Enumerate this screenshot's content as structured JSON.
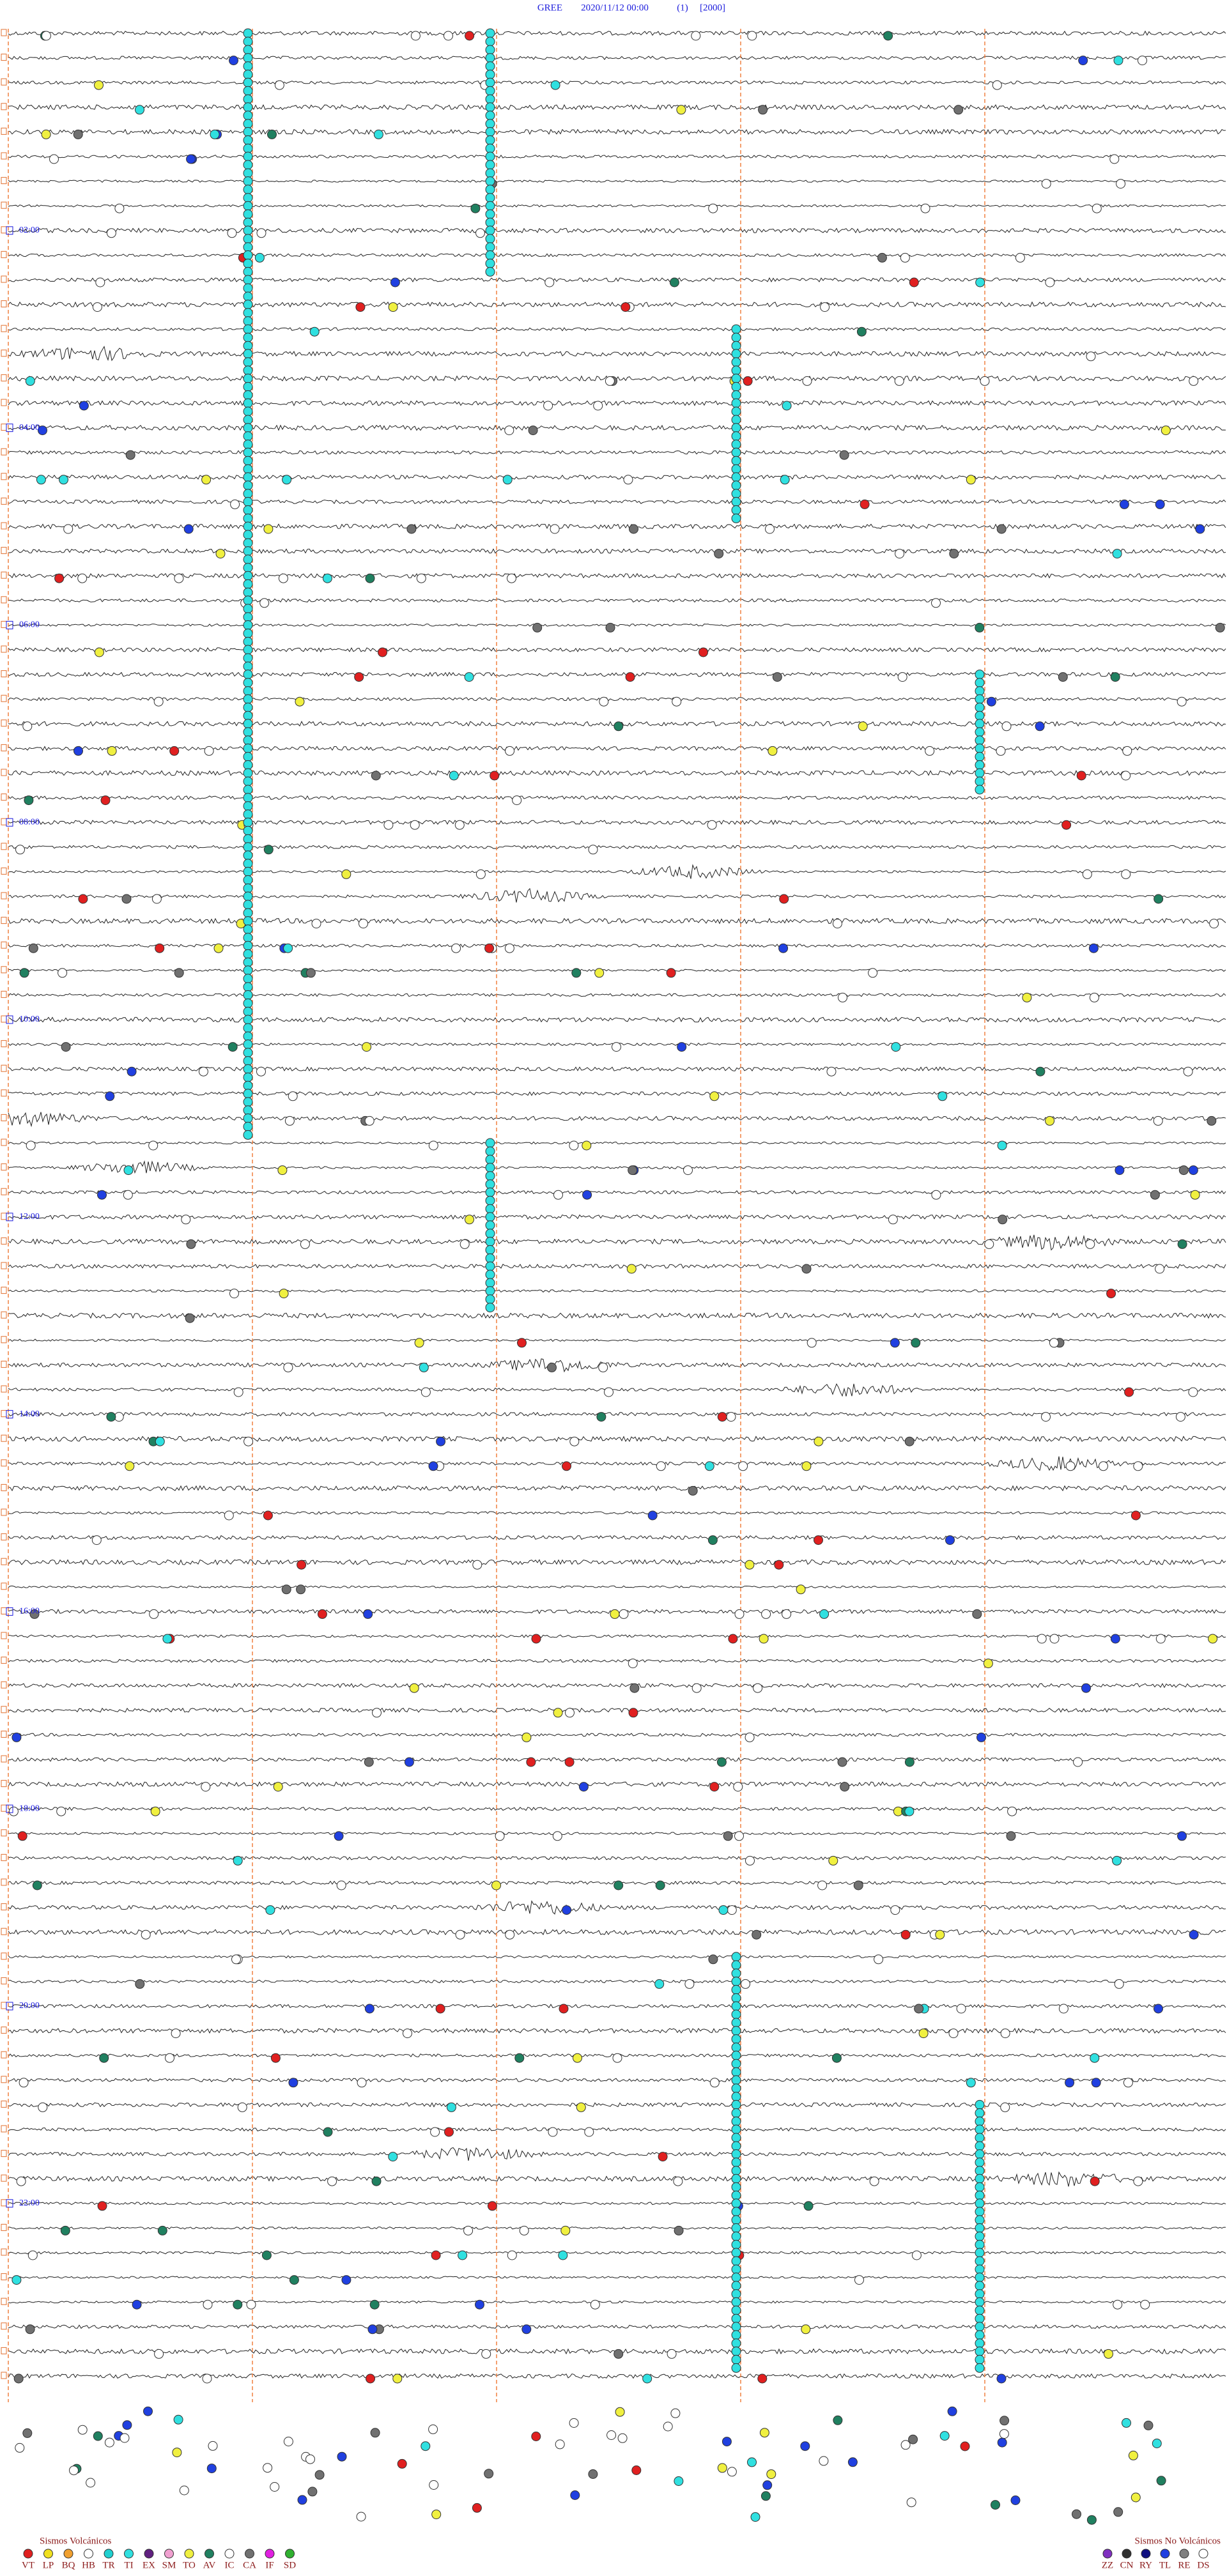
{
  "header": {
    "station": "GREE",
    "datetime": "2020/11/12 00:00",
    "channel": "(1)",
    "scale": "[2000]"
  },
  "hour_labels": [
    "02:00",
    "04:00",
    "06:00",
    "08:00",
    "10:00",
    "12:00",
    "14:00",
    "16:00",
    "18:00",
    "20:00",
    "22:00"
  ],
  "legend": {
    "volcanic": {
      "title": "Sismos Volcánicos",
      "codes": [
        "VT",
        "LP",
        "BQ",
        "HB",
        "TR",
        "TI",
        "EX",
        "SM",
        "TO",
        "AV",
        "IC",
        "CA",
        "IF",
        "SD"
      ],
      "colors": [
        "#e02020",
        "#f0e020",
        "#f0a030",
        "#ffffff",
        "#20d0d0",
        "#30e0e0",
        "#602080",
        "#f0a0d0",
        "#f0f040",
        "#208060",
        "#ffffff",
        "#707070",
        "#e020e0",
        "#30b030"
      ]
    },
    "non_volcanic": {
      "title": "Sismos No Volcánicos",
      "codes": [
        "ZZ",
        "CN",
        "RY",
        "TL",
        "RE",
        "DS"
      ],
      "colors": [
        "#8030c0",
        "#303030",
        "#101080",
        "#2040e0",
        "#808080",
        "#ffffff"
      ]
    }
  }
}
